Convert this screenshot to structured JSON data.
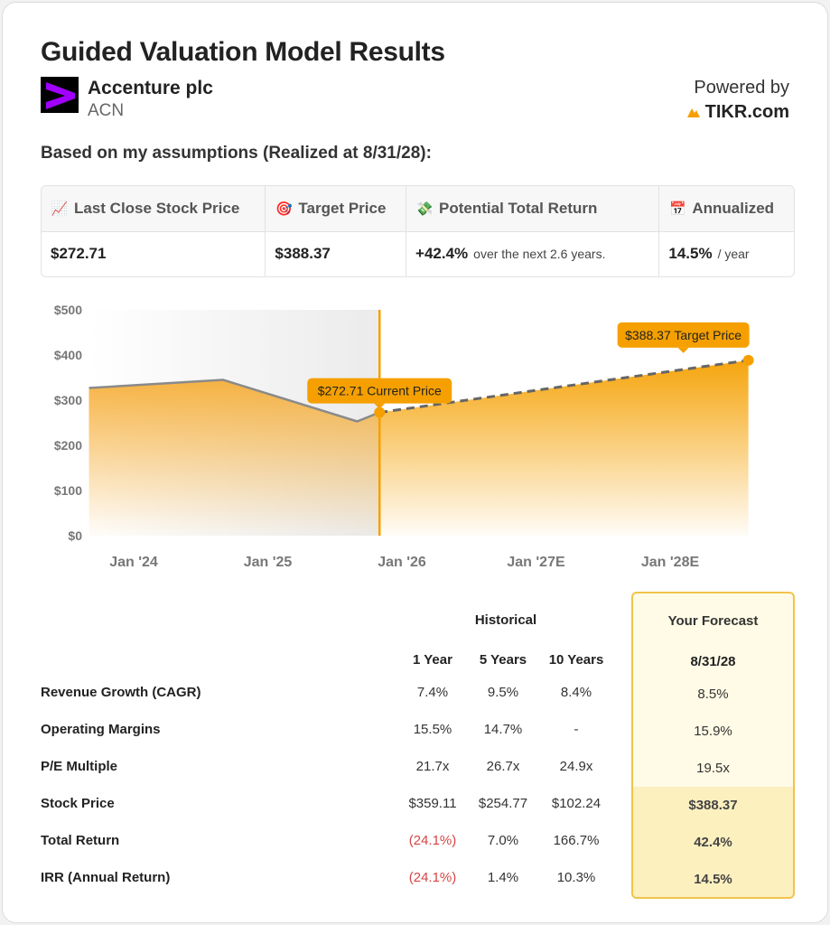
{
  "header": {
    "title": "Guided Valuation Model Results",
    "company": "Accenture plc",
    "ticker": "ACN",
    "powered_by": "Powered by",
    "brand": "TIKR.com"
  },
  "subtitle": "Based on my assumptions (Realized at 8/31/28):",
  "summary": {
    "columns": [
      {
        "icon": "chart-increasing-icon",
        "glyph": "📈",
        "label": "Last Close Stock Price",
        "value": "$272.71",
        "note": ""
      },
      {
        "icon": "target-icon",
        "glyph": "🎯",
        "label": "Target Price",
        "value": "$388.37",
        "note": ""
      },
      {
        "icon": "money-wings-icon",
        "glyph": "💸",
        "label": "Potential Total Return",
        "value": "+42.4%",
        "note": "over the next 2.6 years."
      },
      {
        "icon": "calendar-icon",
        "glyph": "📅",
        "label": "Annualized",
        "value": "14.5%",
        "note": "/ year"
      }
    ]
  },
  "chart_data": {
    "type": "area",
    "y_ticks": [
      "$500",
      "$400",
      "$300",
      "$200",
      "$100",
      "$0"
    ],
    "ylim": [
      0,
      500
    ],
    "x_ticks": [
      "Jan '24",
      "Jan '25",
      "Jan '26",
      "Jan '27E",
      "Jan '28E"
    ],
    "historical": [
      {
        "x": "2023-09",
        "y": 327
      },
      {
        "x": "2024-09",
        "y": 345
      },
      {
        "x": "2025-09",
        "y": 253
      },
      {
        "x": "2025-11",
        "y": 273
      }
    ],
    "forecast": [
      {
        "x": "2025-11",
        "y": 272.71
      },
      {
        "x": "2028-08",
        "y": 388.37
      }
    ],
    "current_label": "$272.71 Current Price",
    "target_label": "$388.37 Target Price",
    "colors": {
      "accent": "#f5a000",
      "history_line": "#8a8a8a",
      "shade": "#efefef"
    }
  },
  "table": {
    "historical_label": "Historical",
    "forecast_label": "Your Forecast",
    "columns": [
      "1 Year",
      "5 Years",
      "10 Years"
    ],
    "forecast_date": "8/31/28",
    "rows": [
      {
        "label": "Revenue Growth (CAGR)",
        "values": [
          "7.4%",
          "9.5%",
          "8.4%"
        ],
        "negative": [
          false,
          false,
          false
        ],
        "forecast": "8.5%",
        "bold": false
      },
      {
        "label": "Operating Margins",
        "values": [
          "15.5%",
          "14.7%",
          "-"
        ],
        "negative": [
          false,
          false,
          false
        ],
        "forecast": "15.9%",
        "bold": false
      },
      {
        "label": "P/E Multiple",
        "values": [
          "21.7x",
          "26.7x",
          "24.9x"
        ],
        "negative": [
          false,
          false,
          false
        ],
        "forecast": "19.5x",
        "bold": false
      },
      {
        "label": "Stock Price",
        "values": [
          "$359.11",
          "$254.77",
          "$102.24"
        ],
        "negative": [
          false,
          false,
          false
        ],
        "forecast": "$388.37",
        "bold": true
      },
      {
        "label": "Total Return",
        "values": [
          "(24.1%)",
          "7.0%",
          "166.7%"
        ],
        "negative": [
          true,
          false,
          false
        ],
        "forecast": "42.4%",
        "bold": true
      },
      {
        "label": "IRR (Annual Return)",
        "values": [
          "(24.1%)",
          "1.4%",
          "10.3%"
        ],
        "negative": [
          true,
          false,
          false
        ],
        "forecast": "14.5%",
        "bold": true
      }
    ]
  }
}
